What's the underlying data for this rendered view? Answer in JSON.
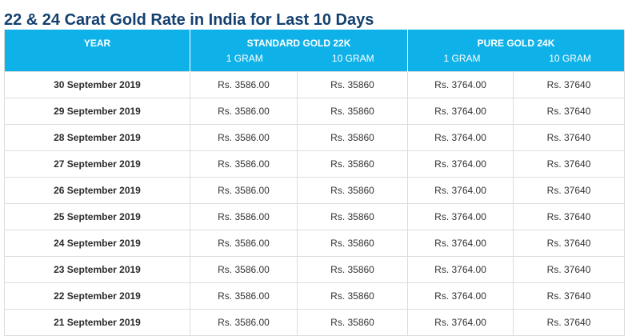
{
  "title": "22 & 24 Carat Gold Rate in India for Last 10 Days",
  "header": {
    "year": "YEAR",
    "gold22": {
      "label": "STANDARD GOLD 22K",
      "sub": [
        "1 GRAM",
        "10 GRAM"
      ]
    },
    "gold24": {
      "label": "PURE GOLD 24K",
      "sub": [
        "1 GRAM",
        "10 GRAM"
      ]
    }
  },
  "rows": [
    {
      "date": "30 September 2019",
      "g22_1": "Rs. 3586.00",
      "g22_10": "Rs. 35860",
      "g24_1": "Rs. 3764.00",
      "g24_10": "Rs. 37640"
    },
    {
      "date": "29 September 2019",
      "g22_1": "Rs. 3586.00",
      "g22_10": "Rs. 35860",
      "g24_1": "Rs. 3764.00",
      "g24_10": "Rs. 37640"
    },
    {
      "date": "28 September 2019",
      "g22_1": "Rs. 3586.00",
      "g22_10": "Rs. 35860",
      "g24_1": "Rs. 3764.00",
      "g24_10": "Rs. 37640"
    },
    {
      "date": "27 September 2019",
      "g22_1": "Rs. 3586.00",
      "g22_10": "Rs. 35860",
      "g24_1": "Rs. 3764.00",
      "g24_10": "Rs. 37640"
    },
    {
      "date": "26 September 2019",
      "g22_1": "Rs. 3586.00",
      "g22_10": "Rs. 35860",
      "g24_1": "Rs. 3764.00",
      "g24_10": "Rs. 37640"
    },
    {
      "date": "25 September 2019",
      "g22_1": "Rs. 3586.00",
      "g22_10": "Rs. 35860",
      "g24_1": "Rs. 3764.00",
      "g24_10": "Rs. 37640"
    },
    {
      "date": "24 September 2019",
      "g22_1": "Rs. 3586.00",
      "g22_10": "Rs. 35860",
      "g24_1": "Rs. 3764.00",
      "g24_10": "Rs. 37640"
    },
    {
      "date": "23 September 2019",
      "g22_1": "Rs. 3586.00",
      "g22_10": "Rs. 35860",
      "g24_1": "Rs. 3764.00",
      "g24_10": "Rs. 37640"
    },
    {
      "date": "22 September 2019",
      "g22_1": "Rs. 3586.00",
      "g22_10": "Rs. 35860",
      "g24_1": "Rs. 3764.00",
      "g24_10": "Rs. 37640"
    },
    {
      "date": "21 September 2019",
      "g22_1": "Rs. 3586.00",
      "g22_10": "Rs. 35860",
      "g24_1": "Rs. 3764.00",
      "g24_10": "Rs. 37640"
    }
  ]
}
